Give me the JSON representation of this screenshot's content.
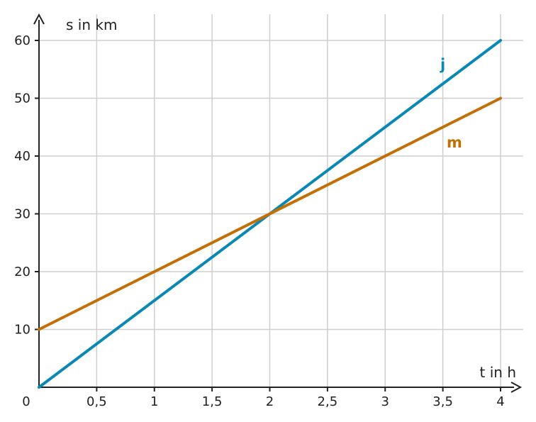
{
  "chart_data": {
    "type": "line",
    "xlabel": "t in h",
    "ylabel": "s in km",
    "xlim": [
      0,
      4
    ],
    "ylim": [
      0,
      60
    ],
    "grid": true,
    "origin_label": "0",
    "x_ticks": [
      {
        "value": 0.5,
        "label": "0,5"
      },
      {
        "value": 1,
        "label": "1"
      },
      {
        "value": 1.5,
        "label": "1,5"
      },
      {
        "value": 2,
        "label": "2"
      },
      {
        "value": 2.5,
        "label": "2,5"
      },
      {
        "value": 3,
        "label": "3"
      },
      {
        "value": 3.5,
        "label": "3,5"
      },
      {
        "value": 4,
        "label": "4"
      }
    ],
    "y_ticks": [
      {
        "value": 10,
        "label": "10"
      },
      {
        "value": 20,
        "label": "20"
      },
      {
        "value": 30,
        "label": "30"
      },
      {
        "value": 40,
        "label": "40"
      },
      {
        "value": 50,
        "label": "50"
      },
      {
        "value": 60,
        "label": "60"
      }
    ],
    "series": [
      {
        "name": "j",
        "color": "#0a88b5",
        "x": [
          0,
          4
        ],
        "y": [
          0,
          60
        ],
        "label_at": [
          3.5,
          55
        ]
      },
      {
        "name": "m",
        "color": "#c26f06",
        "x": [
          0,
          4
        ],
        "y": [
          10,
          50
        ],
        "label_at": [
          3.6,
          41.5
        ]
      }
    ]
  }
}
